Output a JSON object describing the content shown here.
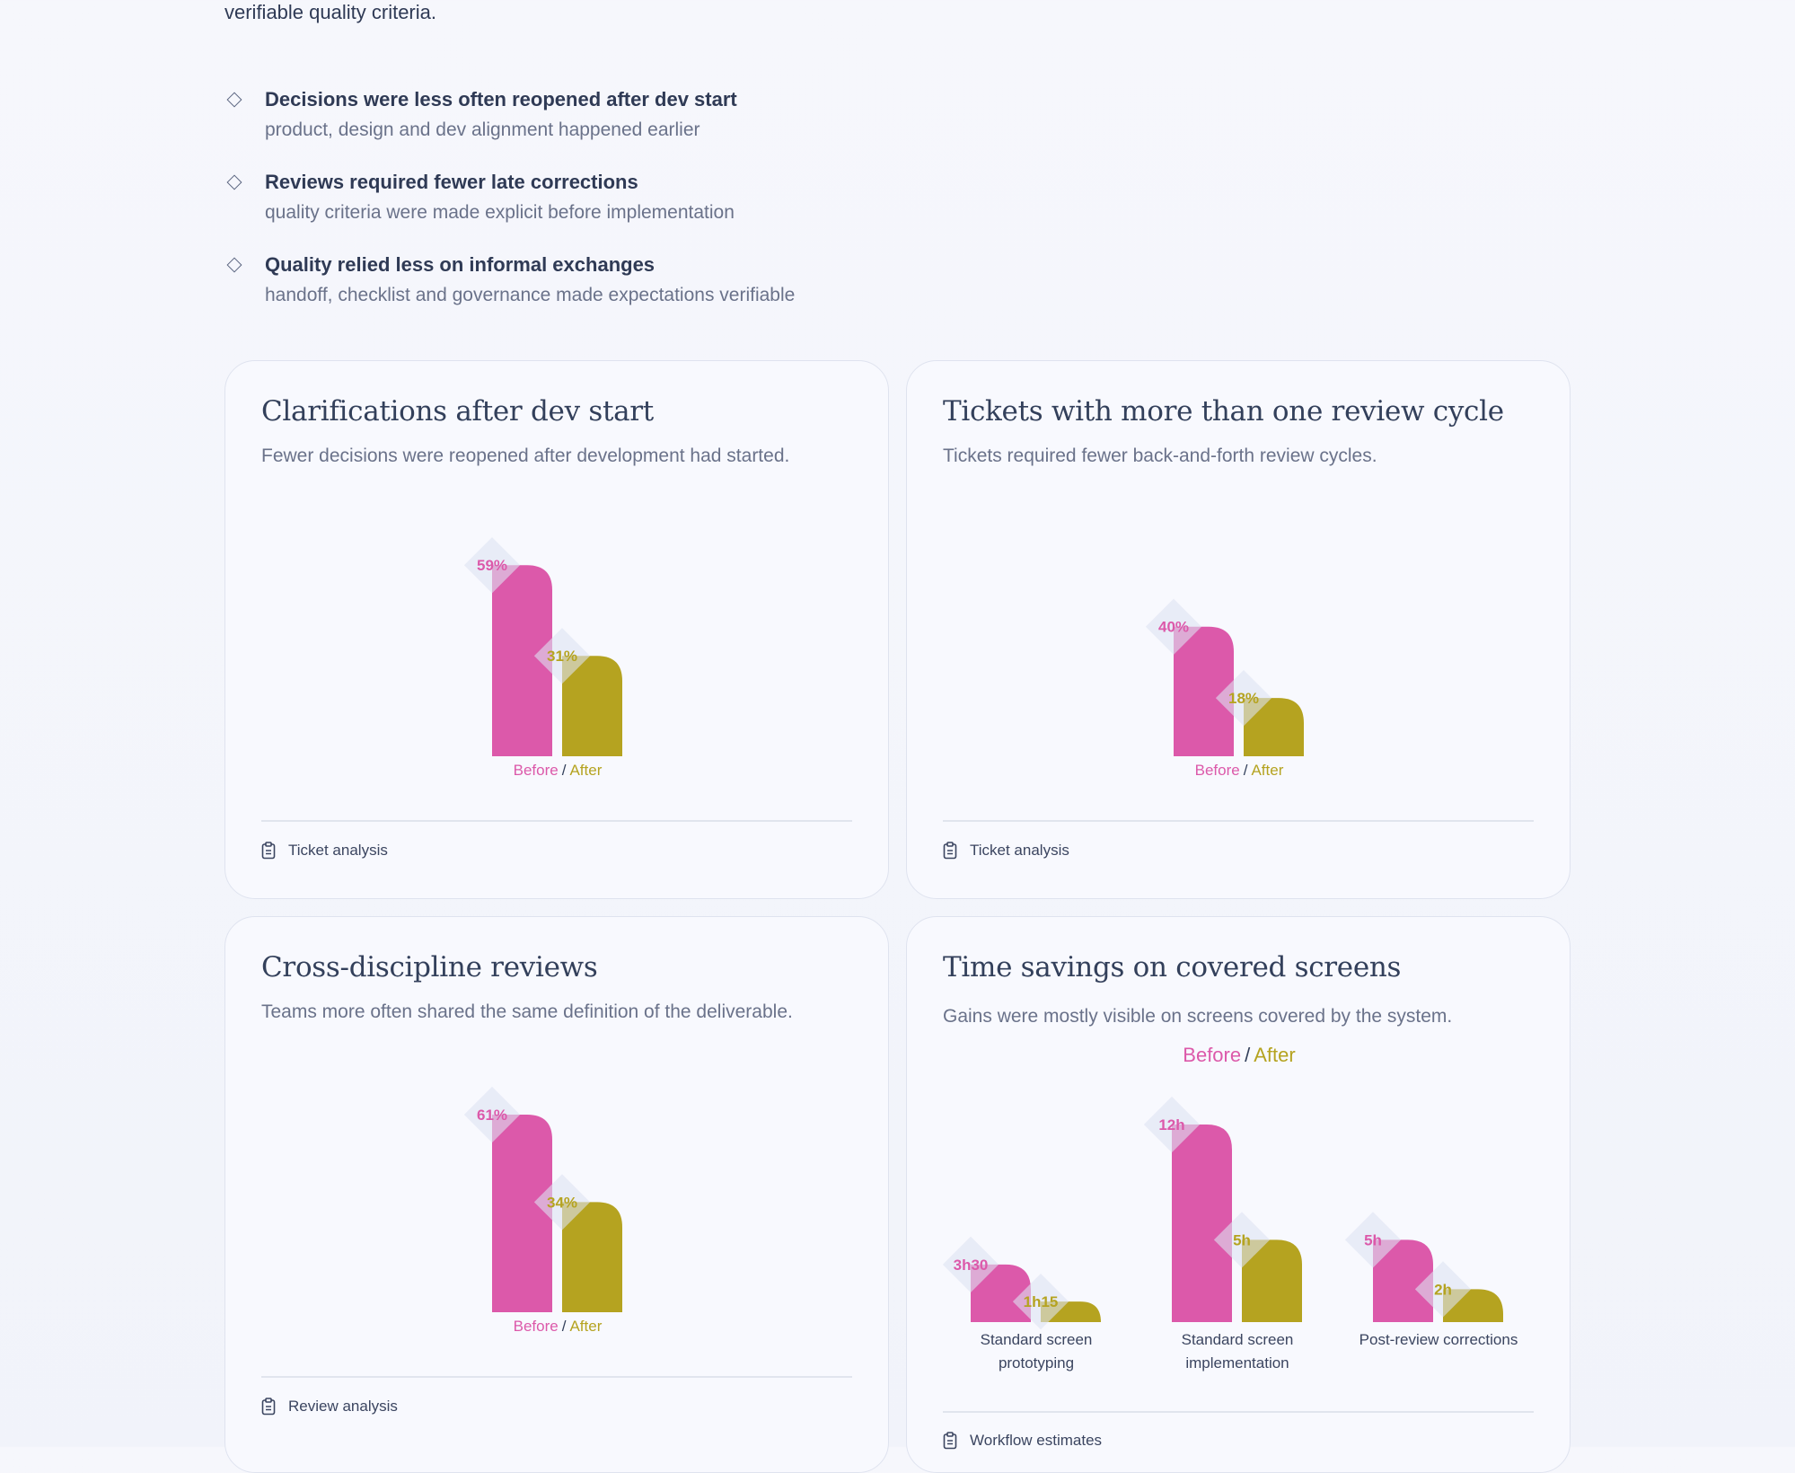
{
  "intro": {
    "tail": "verifiable quality criteria."
  },
  "highlights": [
    {
      "title": "Decisions were less often reopened after dev start",
      "desc": "product, design and dev alignment happened earlier"
    },
    {
      "title": "Reviews required fewer late corrections",
      "desc": "quality criteria were made explicit before implementation"
    },
    {
      "title": "Quality relied less on informal exchanges",
      "desc": "handoff, checklist and governance made expectations verifiable"
    }
  ],
  "colors": {
    "before": "#dc59aa",
    "after": "#b5a320",
    "text": "#33405b"
  },
  "legend": {
    "before": "Before",
    "separator": "/",
    "after": "After"
  },
  "cards": [
    {
      "title": "Clarifications after dev start",
      "subtitle": "Fewer decisions were reopened after development had started.",
      "source": "Ticket analysis",
      "source_icon": "clipboard-icon"
    },
    {
      "title": "Tickets with more than one review cycle",
      "subtitle": "Tickets required fewer back-and-forth review cycles.",
      "source": "Ticket analysis",
      "source_icon": "clipboard-icon"
    },
    {
      "title": "Cross-discipline reviews",
      "subtitle": "Teams more often shared the same definition of the deliverable.",
      "source": "Review analysis",
      "source_icon": "clipboard-icon"
    },
    {
      "title": "Time savings on covered screens",
      "subtitle": "Gains were mostly visible on screens covered by the system.",
      "source": "Workflow estimates",
      "source_icon": "clipboard-icon"
    }
  ],
  "chart_data": [
    {
      "type": "bar",
      "title": "Clarifications after dev start",
      "unit": "%",
      "series": [
        {
          "name": "Before",
          "values": [
            59
          ],
          "labels": [
            "59%"
          ]
        },
        {
          "name": "After",
          "values": [
            31
          ],
          "labels": [
            "31%"
          ]
        }
      ]
    },
    {
      "type": "bar",
      "title": "Tickets with more than one review cycle",
      "unit": "%",
      "series": [
        {
          "name": "Before",
          "values": [
            40
          ],
          "labels": [
            "40%"
          ]
        },
        {
          "name": "After",
          "values": [
            18
          ],
          "labels": [
            "18%"
          ]
        }
      ]
    },
    {
      "type": "bar",
      "title": "Cross-discipline reviews",
      "unit": "%",
      "series": [
        {
          "name": "Before",
          "values": [
            61
          ],
          "labels": [
            "61%"
          ]
        },
        {
          "name": "After",
          "values": [
            34
          ],
          "labels": [
            "34%"
          ]
        }
      ]
    },
    {
      "type": "bar",
      "title": "Time savings on covered screens",
      "unit": "hours",
      "categories": [
        "Standard screen prototyping",
        "Standard screen implementation",
        "Post-review corrections"
      ],
      "series": [
        {
          "name": "Before",
          "values": [
            3.5,
            12,
            5
          ],
          "labels": [
            "3h30",
            "12h",
            "5h"
          ]
        },
        {
          "name": "After",
          "values": [
            1.25,
            5,
            2
          ],
          "labels": [
            "1h15",
            "5h",
            "2h"
          ]
        }
      ]
    }
  ]
}
